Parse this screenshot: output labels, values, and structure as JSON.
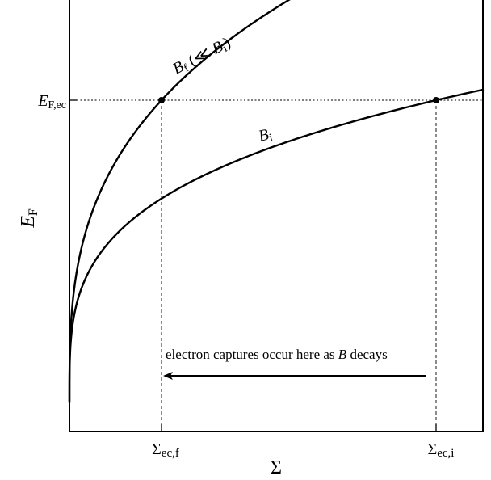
{
  "y_axis": {
    "label_main": "E",
    "label_sub": "F",
    "tick_main": "E",
    "tick_sub": "F,ec"
  },
  "x_axis": {
    "label": "Σ",
    "tick_left_main": "Σ",
    "tick_left_sub": "ec,f",
    "tick_right_main": "Σ",
    "tick_right_sub": "ec,i"
  },
  "curves": {
    "final": {
      "label_main": "B",
      "label_sub": "f",
      "label_rest_open": " (≪ ",
      "label_ref_main": "B",
      "label_ref_sub": "i",
      "label_rest_close": ")"
    },
    "initial": {
      "label_main": "B",
      "label_sub": "i"
    }
  },
  "annotation": {
    "text_before": "electron captures occur here as ",
    "text_italic": "B",
    "text_after": " decays"
  },
  "colors": {
    "ink": "#000000",
    "background": "#ffffff"
  }
}
